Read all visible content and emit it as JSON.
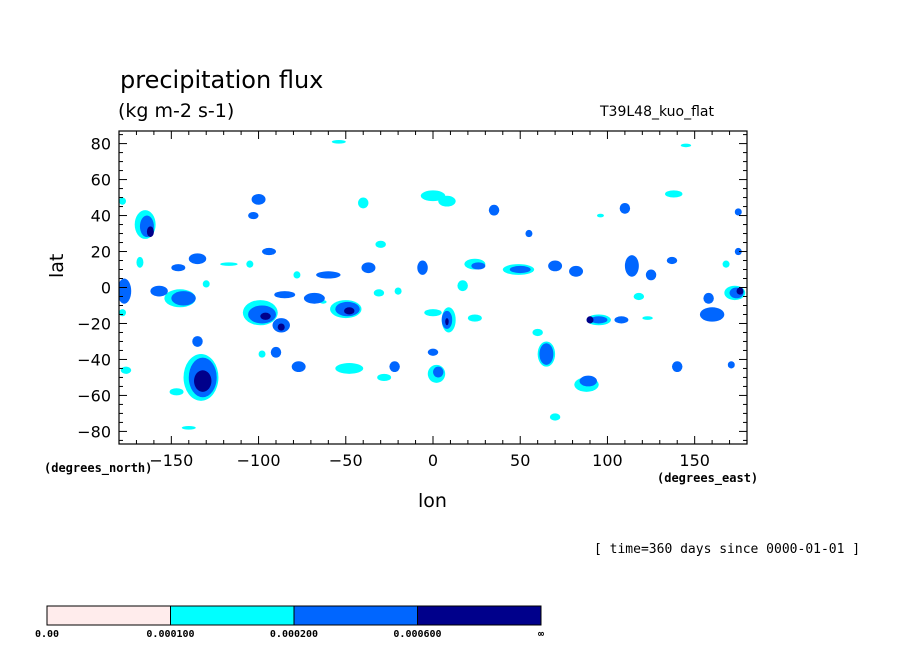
{
  "header": {
    "title": "precipitation flux",
    "units": "(kg m-2 s-1)",
    "run_name": "T39L48_kuo_flat",
    "timestamp": "[ time=360 days since 0000-01-01 ]"
  },
  "chart_data": {
    "type": "heatmap",
    "title": "precipitation flux",
    "subtitle": "(kg m-2 s-1)",
    "xlabel": "lon",
    "ylabel": "lat",
    "x_units": "(degrees_east)",
    "y_units": "(degrees_north)",
    "xlim": [
      -180,
      180
    ],
    "ylim": [
      -87,
      87
    ],
    "xticks": [
      -150,
      -100,
      -50,
      0,
      50,
      100,
      150
    ],
    "yticks": [
      -80,
      -60,
      -40,
      -20,
      0,
      20,
      40,
      60,
      80
    ],
    "grid": false,
    "legend": "bottom",
    "levels": [
      {
        "label": "0.00",
        "color": "#ffecec"
      },
      {
        "label": "0.000100",
        "color": "#00ffff"
      },
      {
        "label": "0.000200",
        "color": "#0066ff"
      },
      {
        "label": "0.000600",
        "color": "#00008b"
      },
      {
        "label": "∞",
        "color": null
      }
    ],
    "regions": [
      {
        "lon": -165,
        "lat": 35,
        "rlon": 6,
        "rlat": 8,
        "level": 1
      },
      {
        "lon": -164,
        "lat": 34,
        "rlon": 4,
        "rlat": 6,
        "level": 2
      },
      {
        "lon": -162,
        "lat": 31,
        "rlon": 2,
        "rlat": 3,
        "level": 3
      },
      {
        "lon": -177,
        "lat": -2,
        "rlon": 4,
        "rlat": 7,
        "level": 2
      },
      {
        "lon": -178,
        "lat": 48,
        "rlon": 2,
        "rlat": 2,
        "level": 1
      },
      {
        "lon": -178,
        "lat": -14,
        "rlon": 2,
        "rlat": 2,
        "level": 1
      },
      {
        "lon": -176,
        "lat": -46,
        "rlon": 3,
        "rlat": 2,
        "level": 1
      },
      {
        "lon": -157,
        "lat": -2,
        "rlon": 5,
        "rlat": 3,
        "level": 2
      },
      {
        "lon": -168,
        "lat": 14,
        "rlon": 2,
        "rlat": 3,
        "level": 1
      },
      {
        "lon": -145,
        "lat": -6,
        "rlon": 9,
        "rlat": 5,
        "level": 1
      },
      {
        "lon": -143,
        "lat": -6,
        "rlon": 7,
        "rlat": 4,
        "level": 2
      },
      {
        "lon": -135,
        "lat": 16,
        "rlon": 5,
        "rlat": 3,
        "level": 2
      },
      {
        "lon": -146,
        "lat": 11,
        "rlon": 4,
        "rlat": 2,
        "level": 2
      },
      {
        "lon": -130,
        "lat": 2,
        "rlon": 2,
        "rlat": 2,
        "level": 1
      },
      {
        "lon": -117,
        "lat": 13,
        "rlon": 5,
        "rlat": 1,
        "level": 1
      },
      {
        "lon": -133,
        "lat": -50,
        "rlon": 10,
        "rlat": 13,
        "level": 1
      },
      {
        "lon": -132,
        "lat": -50,
        "rlon": 8,
        "rlat": 11,
        "level": 2
      },
      {
        "lon": -132,
        "lat": -52,
        "rlon": 5,
        "rlat": 6,
        "level": 3
      },
      {
        "lon": -135,
        "lat": -30,
        "rlon": 3,
        "rlat": 3,
        "level": 2
      },
      {
        "lon": -147,
        "lat": -58,
        "rlon": 4,
        "rlat": 2,
        "level": 1
      },
      {
        "lon": -140,
        "lat": -78,
        "rlon": 4,
        "rlat": 1,
        "level": 1
      },
      {
        "lon": -100,
        "lat": 49,
        "rlon": 4,
        "rlat": 3,
        "level": 2
      },
      {
        "lon": -103,
        "lat": 40,
        "rlon": 3,
        "rlat": 2,
        "level": 2
      },
      {
        "lon": -94,
        "lat": 20,
        "rlon": 4,
        "rlat": 2,
        "level": 2
      },
      {
        "lon": -105,
        "lat": 13,
        "rlon": 2,
        "rlat": 2,
        "level": 1
      },
      {
        "lon": -99,
        "lat": -14,
        "rlon": 10,
        "rlat": 7,
        "level": 1
      },
      {
        "lon": -98,
        "lat": -15,
        "rlon": 8,
        "rlat": 5,
        "level": 2
      },
      {
        "lon": -96,
        "lat": -16,
        "rlon": 3,
        "rlat": 2,
        "level": 3
      },
      {
        "lon": -87,
        "lat": -21,
        "rlon": 5,
        "rlat": 4,
        "level": 2
      },
      {
        "lon": -87,
        "lat": -22,
        "rlon": 2,
        "rlat": 2,
        "level": 3
      },
      {
        "lon": -85,
        "lat": -4,
        "rlon": 6,
        "rlat": 2,
        "level": 2
      },
      {
        "lon": -98,
        "lat": -37,
        "rlon": 2,
        "rlat": 2,
        "level": 1
      },
      {
        "lon": -90,
        "lat": -36,
        "rlon": 3,
        "rlat": 3,
        "level": 2
      },
      {
        "lon": -77,
        "lat": -44,
        "rlon": 4,
        "rlat": 3,
        "level": 2
      },
      {
        "lon": -60,
        "lat": 7,
        "rlon": 7,
        "rlat": 2,
        "level": 2
      },
      {
        "lon": -78,
        "lat": 7,
        "rlon": 2,
        "rlat": 2,
        "level": 1
      },
      {
        "lon": -68,
        "lat": -6,
        "rlon": 6,
        "rlat": 3,
        "level": 2
      },
      {
        "lon": -63,
        "lat": -8,
        "rlon": 2,
        "rlat": 1,
        "level": 1
      },
      {
        "lon": -50,
        "lat": -12,
        "rlon": 9,
        "rlat": 5,
        "level": 1
      },
      {
        "lon": -49,
        "lat": -12,
        "rlon": 7,
        "rlat": 4,
        "level": 2
      },
      {
        "lon": -48,
        "lat": -13,
        "rlon": 3,
        "rlat": 2,
        "level": 3
      },
      {
        "lon": -54,
        "lat": 81,
        "rlon": 4,
        "rlat": 1,
        "level": 1
      },
      {
        "lon": -40,
        "lat": 47,
        "rlon": 3,
        "rlat": 3,
        "level": 1
      },
      {
        "lon": -48,
        "lat": -45,
        "rlon": 8,
        "rlat": 3,
        "level": 1
      },
      {
        "lon": -37,
        "lat": 11,
        "rlon": 4,
        "rlat": 3,
        "level": 2
      },
      {
        "lon": -31,
        "lat": -3,
        "rlon": 3,
        "rlat": 2,
        "level": 1
      },
      {
        "lon": -30,
        "lat": 24,
        "rlon": 3,
        "rlat": 2,
        "level": 1
      },
      {
        "lon": -22,
        "lat": -44,
        "rlon": 3,
        "rlat": 3,
        "level": 2
      },
      {
        "lon": -28,
        "lat": -50,
        "rlon": 4,
        "rlat": 2,
        "level": 1
      },
      {
        "lon": -20,
        "lat": -2,
        "rlon": 2,
        "rlat": 2,
        "level": 1
      },
      {
        "lon": -6,
        "lat": 11,
        "rlon": 3,
        "rlat": 4,
        "level": 2
      },
      {
        "lon": 0,
        "lat": 51,
        "rlon": 7,
        "rlat": 3,
        "level": 1
      },
      {
        "lon": 8,
        "lat": 48,
        "rlon": 5,
        "rlat": 3,
        "level": 1
      },
      {
        "lon": 9,
        "lat": -18,
        "rlon": 4,
        "rlat": 7,
        "level": 1
      },
      {
        "lon": 8,
        "lat": -18,
        "rlon": 3,
        "rlat": 5,
        "level": 2
      },
      {
        "lon": 8,
        "lat": -19,
        "rlon": 1,
        "rlat": 2,
        "level": 3
      },
      {
        "lon": 0,
        "lat": -14,
        "rlon": 5,
        "rlat": 2,
        "level": 1
      },
      {
        "lon": 2,
        "lat": -48,
        "rlon": 5,
        "rlat": 5,
        "level": 1
      },
      {
        "lon": 3,
        "lat": -47,
        "rlon": 3,
        "rlat": 3,
        "level": 2
      },
      {
        "lon": 0,
        "lat": -36,
        "rlon": 3,
        "rlat": 2,
        "level": 2
      },
      {
        "lon": 24,
        "lat": 13,
        "rlon": 6,
        "rlat": 3,
        "level": 1
      },
      {
        "lon": 26,
        "lat": 12,
        "rlon": 4,
        "rlat": 2,
        "level": 2
      },
      {
        "lon": 17,
        "lat": 1,
        "rlon": 3,
        "rlat": 3,
        "level": 1
      },
      {
        "lon": 24,
        "lat": -17,
        "rlon": 4,
        "rlat": 2,
        "level": 1
      },
      {
        "lon": 35,
        "lat": 43,
        "rlon": 3,
        "rlat": 3,
        "level": 2
      },
      {
        "lon": 49,
        "lat": 10,
        "rlon": 9,
        "rlat": 3,
        "level": 1
      },
      {
        "lon": 50,
        "lat": 10,
        "rlon": 6,
        "rlat": 2,
        "level": 2
      },
      {
        "lon": 55,
        "lat": 30,
        "rlon": 2,
        "rlat": 2,
        "level": 2
      },
      {
        "lon": 65,
        "lat": -37,
        "rlon": 5,
        "rlat": 7,
        "level": 1
      },
      {
        "lon": 65,
        "lat": -37,
        "rlon": 4,
        "rlat": 6,
        "level": 2
      },
      {
        "lon": 60,
        "lat": -25,
        "rlon": 3,
        "rlat": 2,
        "level": 1
      },
      {
        "lon": 70,
        "lat": 12,
        "rlon": 4,
        "rlat": 3,
        "level": 2
      },
      {
        "lon": 82,
        "lat": 9,
        "rlon": 4,
        "rlat": 3,
        "level": 2
      },
      {
        "lon": 88,
        "lat": -54,
        "rlon": 7,
        "rlat": 4,
        "level": 1
      },
      {
        "lon": 89,
        "lat": -52,
        "rlon": 5,
        "rlat": 3,
        "level": 2
      },
      {
        "lon": 70,
        "lat": -72,
        "rlon": 3,
        "rlat": 2,
        "level": 1
      },
      {
        "lon": 95,
        "lat": -18,
        "rlon": 7,
        "rlat": 3,
        "level": 1
      },
      {
        "lon": 95,
        "lat": -18,
        "rlon": 5,
        "rlat": 2,
        "level": 2
      },
      {
        "lon": 90,
        "lat": -18,
        "rlon": 2,
        "rlat": 2,
        "level": 3
      },
      {
        "lon": 108,
        "lat": -18,
        "rlon": 4,
        "rlat": 2,
        "level": 2
      },
      {
        "lon": 110,
        "lat": 44,
        "rlon": 3,
        "rlat": 3,
        "level": 2
      },
      {
        "lon": 96,
        "lat": 40,
        "rlon": 2,
        "rlat": 1,
        "level": 1
      },
      {
        "lon": 114,
        "lat": 12,
        "rlon": 4,
        "rlat": 6,
        "level": 2
      },
      {
        "lon": 118,
        "lat": -5,
        "rlon": 3,
        "rlat": 2,
        "level": 1
      },
      {
        "lon": 125,
        "lat": 7,
        "rlon": 3,
        "rlat": 3,
        "level": 2
      },
      {
        "lon": 123,
        "lat": -17,
        "rlon": 3,
        "rlat": 1,
        "level": 1
      },
      {
        "lon": 138,
        "lat": 52,
        "rlon": 5,
        "rlat": 2,
        "level": 1
      },
      {
        "lon": 137,
        "lat": 15,
        "rlon": 3,
        "rlat": 2,
        "level": 2
      },
      {
        "lon": 140,
        "lat": -44,
        "rlon": 3,
        "rlat": 3,
        "level": 2
      },
      {
        "lon": 160,
        "lat": -15,
        "rlon": 7,
        "rlat": 4,
        "level": 2
      },
      {
        "lon": 158,
        "lat": -6,
        "rlon": 3,
        "rlat": 3,
        "level": 2
      },
      {
        "lon": 173,
        "lat": -3,
        "rlon": 6,
        "rlat": 4,
        "level": 1
      },
      {
        "lon": 174,
        "lat": -3,
        "rlon": 4,
        "rlat": 3,
        "level": 2
      },
      {
        "lon": 176,
        "lat": -2,
        "rlon": 2,
        "rlat": 2,
        "level": 3
      },
      {
        "lon": 168,
        "lat": 13,
        "rlon": 2,
        "rlat": 2,
        "level": 1
      },
      {
        "lon": 175,
        "lat": 42,
        "rlon": 2,
        "rlat": 2,
        "level": 2
      },
      {
        "lon": 171,
        "lat": -43,
        "rlon": 2,
        "rlat": 2,
        "level": 2
      },
      {
        "lon": 175,
        "lat": 20,
        "rlon": 2,
        "rlat": 2,
        "level": 2
      },
      {
        "lon": 145,
        "lat": 79,
        "rlon": 3,
        "rlat": 1,
        "level": 1
      }
    ]
  }
}
